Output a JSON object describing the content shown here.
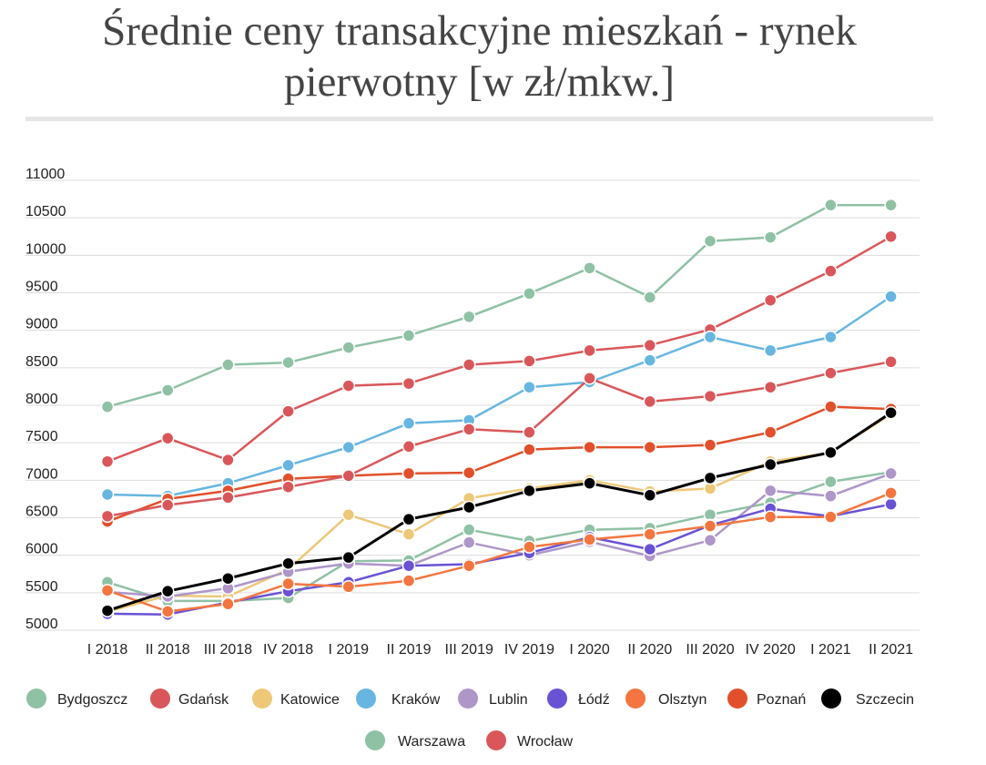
{
  "title_line1": "Średnie ceny transakcyjne mieszkań - rynek",
  "title_line2": "pierwotny  [w zł/mkw.]",
  "chart_data": {
    "type": "line",
    "title": "Średnie ceny transakcyjne mieszkań - rynek pierwotny  [w zł/mkw.]",
    "xlabel": "",
    "ylabel": "",
    "ylim": [
      5000,
      11000
    ],
    "y_ticks": [
      5000,
      5500,
      6000,
      6500,
      7000,
      7500,
      8000,
      8500,
      9000,
      9500,
      10000,
      10500,
      11000
    ],
    "grid": true,
    "legend_position": "bottom",
    "categories": [
      "I 2018",
      "II 2018",
      "III 2018",
      "IV 2018",
      "I 2019",
      "II 2019",
      "III 2019",
      "IV 2019",
      "I 2020",
      "II 2020",
      "III 2020",
      "IV 2020",
      "I 2021",
      "II 2021"
    ],
    "series": [
      {
        "name": "Bydgoszcz",
        "color": "#8fc1a5",
        "values": [
          5640,
          5390,
          5390,
          5430,
          5920,
          5930,
          6340,
          6190,
          6340,
          6360,
          6540,
          6700,
          6980,
          7110
        ]
      },
      {
        "name": "Gdańsk",
        "color": "#d9575a",
        "values": [
          7250,
          7560,
          7270,
          7920,
          8260,
          8290,
          8540,
          8590,
          8730,
          8800,
          9010,
          9400,
          9790,
          10250
        ]
      },
      {
        "name": "Katowice",
        "color": "#ecc878",
        "values": [
          5250,
          5460,
          5450,
          5810,
          6540,
          6280,
          6760,
          6890,
          7000,
          6850,
          6890,
          7250,
          7370,
          7880
        ]
      },
      {
        "name": "Kraków",
        "color": "#67b6e1",
        "values": [
          6810,
          6790,
          6960,
          7200,
          7440,
          7760,
          7800,
          8240,
          8310,
          8600,
          8910,
          8730,
          8910,
          9450
        ]
      },
      {
        "name": "Lublin",
        "color": "#ae96c9",
        "values": [
          5510,
          5450,
          5560,
          5780,
          5890,
          5860,
          6170,
          6000,
          6180,
          5990,
          6200,
          6860,
          6790,
          7090
        ]
      },
      {
        "name": "Łódź",
        "color": "#6a52d4",
        "values": [
          5220,
          5210,
          5370,
          5520,
          5640,
          5860,
          5880,
          6030,
          6240,
          6080,
          6400,
          6620,
          6520,
          6680
        ]
      },
      {
        "name": "Olsztyn",
        "color": "#f4753f",
        "values": [
          5530,
          5250,
          5350,
          5620,
          5580,
          5660,
          5860,
          6110,
          6210,
          6280,
          6390,
          6510,
          6510,
          6830
        ]
      },
      {
        "name": "Poznań",
        "color": "#e1502a",
        "values": [
          6450,
          6750,
          6860,
          7020,
          7060,
          7090,
          7100,
          7410,
          7440,
          7440,
          7470,
          7640,
          7980,
          7950
        ]
      },
      {
        "name": "Szczecin",
        "color": "#000000",
        "values": [
          5260,
          5520,
          5690,
          5890,
          5970,
          6480,
          6640,
          6860,
          6960,
          6800,
          7030,
          7210,
          7370,
          7900
        ]
      },
      {
        "name": "Warszawa",
        "color": "#8fc1a5",
        "values": [
          7980,
          8200,
          8540,
          8570,
          8770,
          8930,
          9180,
          9490,
          9830,
          9440,
          10190,
          10240,
          10670,
          10670
        ]
      },
      {
        "name": "Wrocław",
        "color": "#d9575a",
        "values": [
          6520,
          6670,
          6770,
          6910,
          7060,
          7450,
          7680,
          7640,
          8360,
          8050,
          8120,
          8240,
          8430,
          8580
        ]
      }
    ]
  }
}
